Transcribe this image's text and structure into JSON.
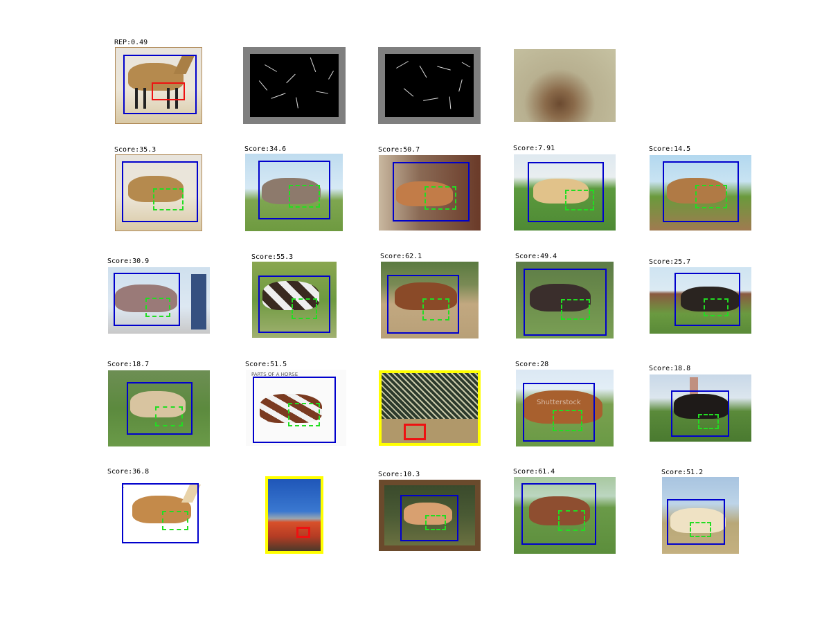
{
  "figure": {
    "rep_label": "REP:0.49",
    "scores": [
      "Score:35.3",
      "Score:34.6",
      "Score:50.7",
      "Score:7.91",
      "Score:14.5",
      "Score:30.9",
      "Score:55.3",
      "Score:62.1",
      "Score:49.4",
      "Score:25.7",
      "Score:18.7",
      "Score:51.5",
      "Score:28",
      "Score:18.8",
      "Score:36.8",
      "Score:10.3",
      "Score:61.4",
      "Score:51.2"
    ],
    "chart_title": "PARTS OF A HORSE",
    "watermark": "Shutterstock"
  },
  "colors": {
    "bbox": "#0000cc",
    "patch_dashed": "#22dd22",
    "query_patch": "#ee1111",
    "false_positive_frame": "#ffff00",
    "hog_border": "#7f7f7f"
  }
}
